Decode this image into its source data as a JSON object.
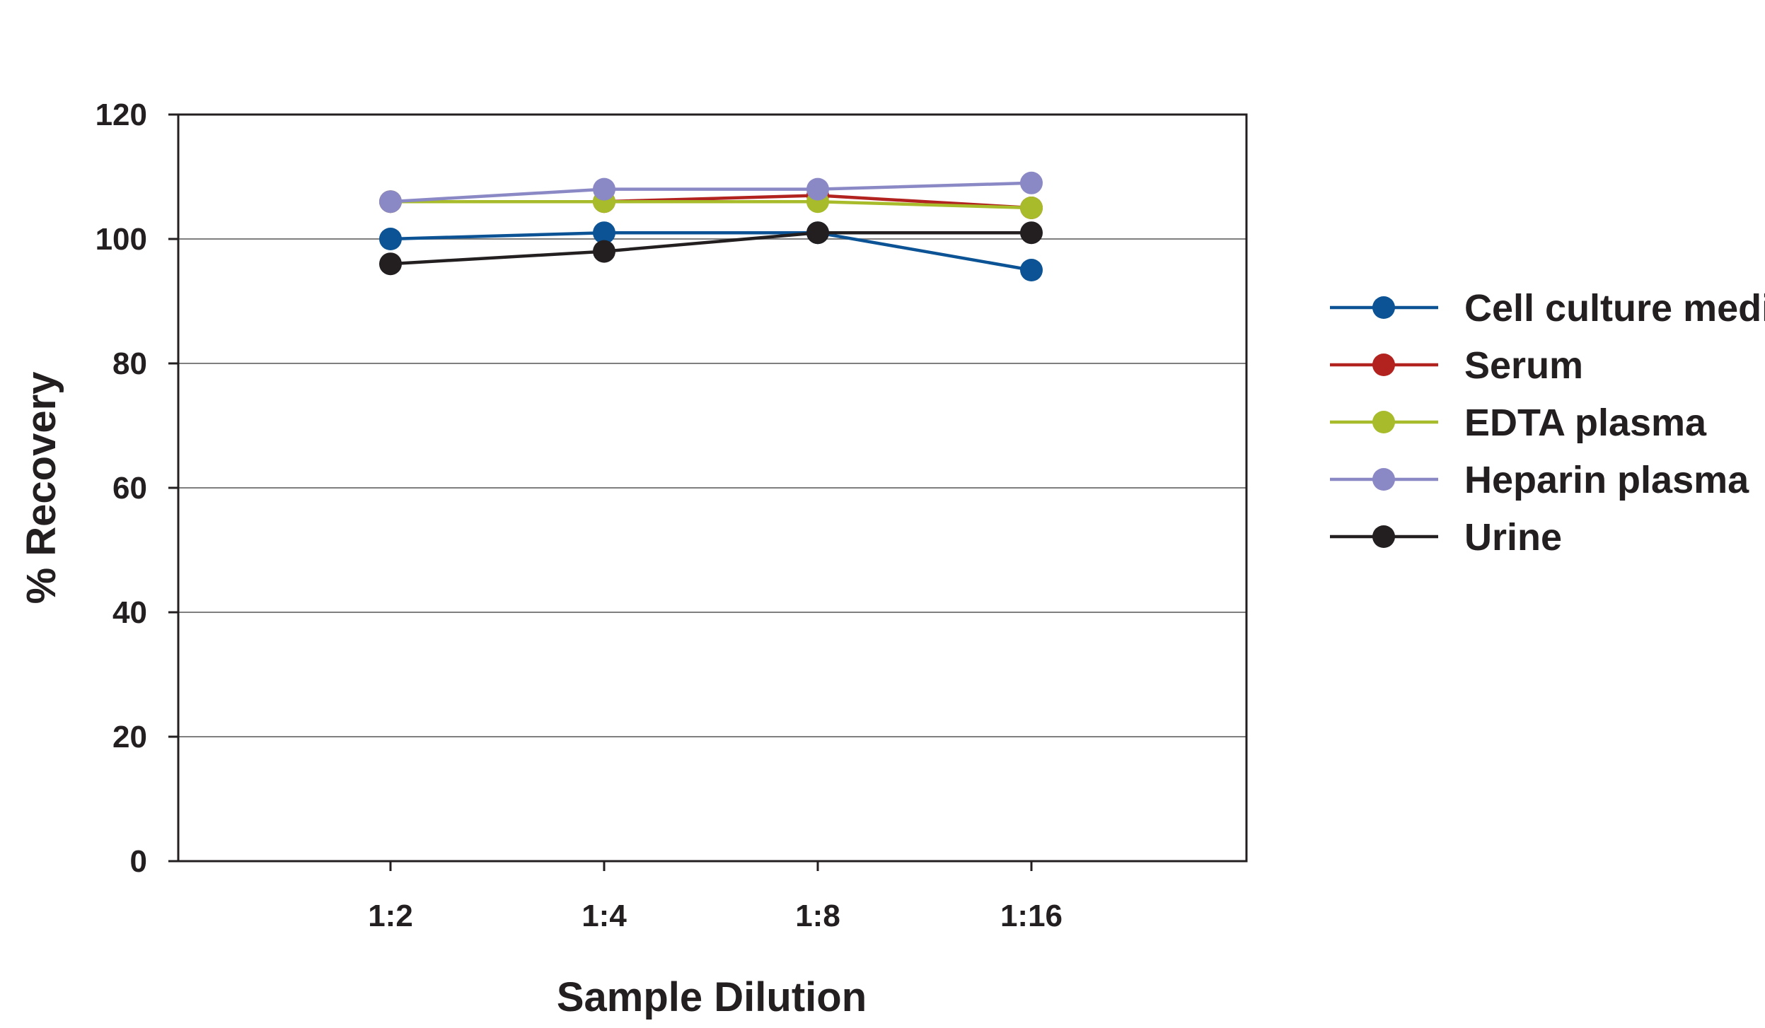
{
  "chart_data": {
    "type": "line",
    "categories": [
      "1:2",
      "1:4",
      "1:8",
      "1:16"
    ],
    "xlabel": "Sample Dilution",
    "ylabel": "% Recovery",
    "ylim": [
      0,
      120
    ],
    "yticks": [
      0,
      20,
      40,
      60,
      80,
      100,
      120
    ],
    "grid": true,
    "legend_position": "right",
    "series": [
      {
        "name": "Cell culture media",
        "color": "#0b5394",
        "values": [
          100,
          101,
          101,
          95
        ]
      },
      {
        "name": "Serum",
        "color": "#b2231f",
        "values": [
          106,
          106,
          107,
          105
        ]
      },
      {
        "name": "EDTA plasma",
        "color": "#a8bb2a",
        "values": [
          106,
          106,
          106,
          105
        ]
      },
      {
        "name": "Heparin plasma",
        "color": "#8b88c6",
        "values": [
          106,
          108,
          108,
          109
        ]
      },
      {
        "name": "Urine",
        "color": "#231f20",
        "values": [
          96,
          98,
          101,
          101
        ]
      }
    ]
  }
}
